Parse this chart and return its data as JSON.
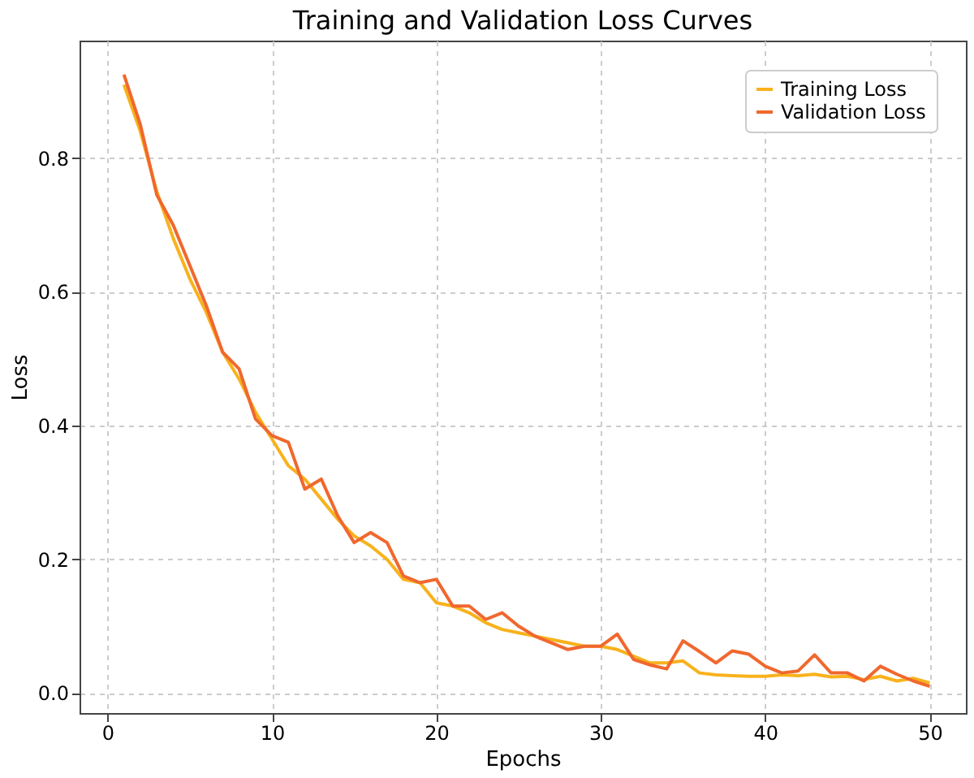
{
  "chart_data": {
    "type": "line",
    "title": "Training and Validation Loss Curves",
    "xlabel": "Epochs",
    "ylabel": "Loss",
    "x": [
      1,
      2,
      3,
      4,
      5,
      6,
      7,
      8,
      9,
      10,
      11,
      12,
      13,
      14,
      15,
      16,
      17,
      18,
      19,
      20,
      21,
      22,
      23,
      24,
      25,
      26,
      27,
      28,
      29,
      30,
      31,
      32,
      33,
      34,
      35,
      36,
      37,
      38,
      39,
      40,
      41,
      42,
      43,
      44,
      45,
      46,
      47,
      48,
      49,
      50
    ],
    "series": [
      {
        "name": "Training Loss",
        "color": "#f8b21c",
        "values": [
          0.91,
          0.84,
          0.75,
          0.68,
          0.62,
          0.57,
          0.51,
          0.47,
          0.42,
          0.38,
          0.34,
          0.32,
          0.29,
          0.26,
          0.235,
          0.22,
          0.2,
          0.17,
          0.165,
          0.135,
          0.13,
          0.12,
          0.105,
          0.095,
          0.09,
          0.085,
          0.08,
          0.075,
          0.07,
          0.07,
          0.065,
          0.055,
          0.045,
          0.045,
          0.048,
          0.03,
          0.027,
          0.026,
          0.025,
          0.025,
          0.027,
          0.026,
          0.028,
          0.024,
          0.025,
          0.02,
          0.025,
          0.018,
          0.022,
          0.015
        ]
      },
      {
        "name": "Validation Loss",
        "color": "#f0682e",
        "values": [
          0.925,
          0.85,
          0.745,
          0.7,
          0.64,
          0.58,
          0.51,
          0.485,
          0.41,
          0.385,
          0.375,
          0.305,
          0.32,
          0.265,
          0.225,
          0.24,
          0.225,
          0.175,
          0.165,
          0.17,
          0.13,
          0.13,
          0.11,
          0.12,
          0.1,
          0.085,
          0.075,
          0.065,
          0.07,
          0.07,
          0.088,
          0.05,
          0.042,
          0.036,
          0.078,
          0.062,
          0.045,
          0.063,
          0.058,
          0.04,
          0.03,
          0.033,
          0.057,
          0.03,
          0.03,
          0.018,
          0.04,
          0.028,
          0.018,
          0.01
        ]
      }
    ],
    "xlim": [
      -1.7,
      52.2
    ],
    "xticks": [
      0,
      10,
      20,
      30,
      40,
      50
    ],
    "ylim": [
      -0.03,
      0.976
    ],
    "yticks": [
      {
        "value": 0,
        "label": "0.0"
      },
      0.2,
      0.4,
      0.6,
      0.8
    ],
    "grid": true,
    "legend": "top right",
    "line_style": "solid",
    "marker": "none"
  }
}
